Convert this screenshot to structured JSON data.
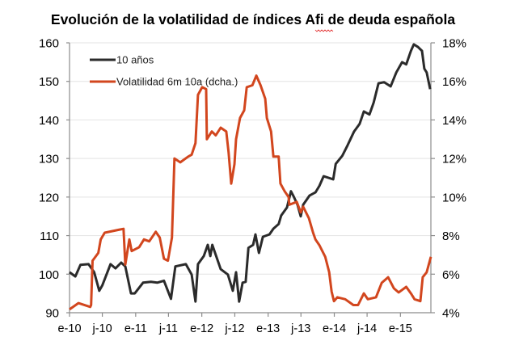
{
  "chart_data": {
    "type": "line",
    "title": "Evolución de la volatilidad de índices Afi de deuda española",
    "xlabel": "",
    "ylabel": "",
    "y2label": "",
    "x_range": [
      "2010-01-01",
      "2015-06-18"
    ],
    "ylim": [
      90,
      160
    ],
    "y2lim": [
      4,
      18
    ],
    "yticks": [
      "90",
      "100",
      "110",
      "120",
      "130",
      "140",
      "150",
      "160"
    ],
    "y2ticks": [
      "4%",
      "6%",
      "8%",
      "10%",
      "12%",
      "14%",
      "16%",
      "18%"
    ],
    "xticks": [
      "e-10",
      "j-10",
      "e-11",
      "j-11",
      "e-12",
      "j-12",
      "e-13",
      "j-13",
      "e-14",
      "j-14",
      "e-15"
    ],
    "grid": true,
    "legend_position": "top-left",
    "series": [
      {
        "name": "10 años",
        "axis": "left",
        "color": "#2b2b2b",
        "points": [
          [
            "2010-01-01",
            100.5
          ],
          [
            "2010-02-02",
            99.4
          ],
          [
            "2010-03-02",
            102.4
          ],
          [
            "2010-04-16",
            102.6
          ],
          [
            "2010-05-17",
            100.5
          ],
          [
            "2010-06-14",
            95.7
          ],
          [
            "2010-07-01",
            97.1
          ],
          [
            "2010-08-15",
            102.6
          ],
          [
            "2010-09-12",
            101.5
          ],
          [
            "2010-10-13",
            103
          ],
          [
            "2010-11-05",
            102
          ],
          [
            "2010-12-06",
            95
          ],
          [
            "2010-12-27",
            95
          ],
          [
            "2011-02-11",
            97.8
          ],
          [
            "2011-03-26",
            98
          ],
          [
            "2011-04-30",
            97.8
          ],
          [
            "2011-06-06",
            98.3
          ],
          [
            "2011-07-15",
            93.6
          ],
          [
            "2011-08-08",
            102
          ],
          [
            "2011-10-05",
            102.6
          ],
          [
            "2011-11-06",
            99.9
          ],
          [
            "2011-11-27",
            92.9
          ],
          [
            "2011-12-11",
            102.6
          ],
          [
            "2012-01-12",
            104.7
          ],
          [
            "2012-02-03",
            107.6
          ],
          [
            "2012-02-17",
            104.7
          ],
          [
            "2012-02-28",
            107.6
          ],
          [
            "2012-04-14",
            101.3
          ],
          [
            "2012-05-24",
            99.9
          ],
          [
            "2012-06-20",
            95.7
          ],
          [
            "2012-07-08",
            100.5
          ],
          [
            "2012-07-25",
            92.9
          ],
          [
            "2012-08-13",
            97.8
          ],
          [
            "2012-08-30",
            98
          ],
          [
            "2012-09-14",
            106.8
          ],
          [
            "2012-10-10",
            107.6
          ],
          [
            "2012-10-23",
            110.3
          ],
          [
            "2012-11-11",
            105.5
          ],
          [
            "2012-12-03",
            109.7
          ],
          [
            "2013-01-08",
            110.3
          ],
          [
            "2013-01-30",
            111.8
          ],
          [
            "2013-02-28",
            113
          ],
          [
            "2013-03-14",
            115.2
          ],
          [
            "2013-04-15",
            117.3
          ],
          [
            "2013-05-07",
            121.5
          ],
          [
            "2013-05-20",
            120.3
          ],
          [
            "2013-06-12",
            118
          ],
          [
            "2013-06-30",
            115
          ],
          [
            "2013-07-13",
            118
          ],
          [
            "2013-08-18",
            120.4
          ],
          [
            "2013-09-19",
            121.2
          ],
          [
            "2013-10-11",
            122.9
          ],
          [
            "2013-11-03",
            125.4
          ],
          [
            "2013-12-26",
            124.6
          ],
          [
            "2014-01-09",
            128.6
          ],
          [
            "2014-02-14",
            130.7
          ],
          [
            "2014-03-15",
            133.4
          ],
          [
            "2014-04-20",
            137
          ],
          [
            "2014-05-21",
            139
          ],
          [
            "2014-06-13",
            142.2
          ],
          [
            "2014-07-14",
            141.4
          ],
          [
            "2014-08-06",
            144.5
          ],
          [
            "2014-09-02",
            149.5
          ],
          [
            "2014-10-03",
            149.8
          ],
          [
            "2014-11-08",
            148.7
          ],
          [
            "2014-12-09",
            152.3
          ],
          [
            "2015-01-10",
            155
          ],
          [
            "2015-02-02",
            154.4
          ],
          [
            "2015-02-28",
            157.9
          ],
          [
            "2015-03-16",
            159.6
          ],
          [
            "2015-04-08",
            158.9
          ],
          [
            "2015-04-30",
            157.9
          ],
          [
            "2015-05-13",
            153.3
          ],
          [
            "2015-05-26",
            152.3
          ],
          [
            "2015-06-14",
            148
          ]
        ]
      },
      {
        "name": "Volatilidad 6m 10a (dcha.)",
        "axis": "right",
        "color": "#d2461e",
        "points": [
          [
            "2010-01-01",
            4.17
          ],
          [
            "2010-02-19",
            4.5
          ],
          [
            "2010-04-25",
            4.3
          ],
          [
            "2010-04-30",
            4.4
          ],
          [
            "2010-05-08",
            6.7
          ],
          [
            "2010-06-09",
            7.1
          ],
          [
            "2010-06-22",
            7.8
          ],
          [
            "2010-07-14",
            8.15
          ],
          [
            "2010-09-29",
            8.3
          ],
          [
            "2010-10-26",
            8.35
          ],
          [
            "2010-11-05",
            6.5
          ],
          [
            "2010-11-27",
            7.8
          ],
          [
            "2010-12-10",
            7.2
          ],
          [
            "2011-01-20",
            7.4
          ],
          [
            "2011-02-16",
            7.8
          ],
          [
            "2011-03-17",
            7.7
          ],
          [
            "2011-04-22",
            8.2
          ],
          [
            "2011-05-14",
            7.9
          ],
          [
            "2011-06-06",
            6.8
          ],
          [
            "2011-06-28",
            6.7
          ],
          [
            "2011-07-20",
            7.9
          ],
          [
            "2011-08-03",
            12.0
          ],
          [
            "2011-09-04",
            11.8
          ],
          [
            "2011-10-18",
            12.1
          ],
          [
            "2011-11-06",
            12.2
          ],
          [
            "2011-11-27",
            12.8
          ],
          [
            "2011-12-11",
            15.3
          ],
          [
            "2012-01-03",
            15.7
          ],
          [
            "2012-01-25",
            15.6
          ],
          [
            "2012-01-29",
            13.0
          ],
          [
            "2012-02-25",
            13.4
          ],
          [
            "2012-03-18",
            13.2
          ],
          [
            "2012-04-14",
            13.6
          ],
          [
            "2012-05-15",
            13.4
          ],
          [
            "2012-05-28",
            12.3
          ],
          [
            "2012-06-11",
            10.7
          ],
          [
            "2012-06-29",
            11.7
          ],
          [
            "2012-07-08",
            13.0
          ],
          [
            "2012-07-30",
            14.1
          ],
          [
            "2012-08-22",
            14.5
          ],
          [
            "2012-09-05",
            15.7
          ],
          [
            "2012-10-06",
            15.8
          ],
          [
            "2012-10-28",
            16.3
          ],
          [
            "2012-11-20",
            15.8
          ],
          [
            "2012-12-16",
            15.1
          ],
          [
            "2012-12-25",
            14.1
          ],
          [
            "2013-01-17",
            13.4
          ],
          [
            "2013-01-30",
            12.1
          ],
          [
            "2013-02-28",
            12.1
          ],
          [
            "2013-03-10",
            10.7
          ],
          [
            "2013-04-02",
            10.3
          ],
          [
            "2013-04-24",
            10.0
          ],
          [
            "2013-04-28",
            9.6
          ],
          [
            "2013-06-08",
            9.75
          ],
          [
            "2013-06-30",
            9.2
          ],
          [
            "2013-07-13",
            9.5
          ],
          [
            "2013-08-14",
            8.9
          ],
          [
            "2013-09-06",
            8.15
          ],
          [
            "2013-09-19",
            7.8
          ],
          [
            "2013-10-11",
            7.5
          ],
          [
            "2013-11-12",
            6.9
          ],
          [
            "2013-12-04",
            6.1
          ],
          [
            "2013-12-17",
            5.1
          ],
          [
            "2013-12-30",
            4.6
          ],
          [
            "2014-01-18",
            4.8
          ],
          [
            "2014-03-02",
            4.7
          ],
          [
            "2014-04-16",
            4.4
          ],
          [
            "2014-05-12",
            4.4
          ],
          [
            "2014-06-13",
            5.0
          ],
          [
            "2014-07-05",
            4.7
          ],
          [
            "2014-08-19",
            4.8
          ],
          [
            "2014-09-20",
            5.55
          ],
          [
            "2014-10-25",
            5.84
          ],
          [
            "2014-11-26",
            5.26
          ],
          [
            "2014-12-22",
            5.05
          ],
          [
            "2015-02-02",
            5.34
          ],
          [
            "2015-02-28",
            5.0
          ],
          [
            "2015-03-20",
            4.7
          ],
          [
            "2015-04-21",
            4.6
          ],
          [
            "2015-05-04",
            5.84
          ],
          [
            "2015-05-26",
            6.1
          ],
          [
            "2015-06-18",
            6.9
          ]
        ]
      }
    ]
  }
}
